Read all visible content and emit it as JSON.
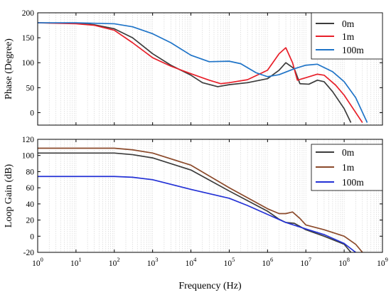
{
  "chart_data": [
    {
      "type": "line",
      "panel": "top",
      "title": "",
      "xlabel": "",
      "ylabel": "Phase (Degree)",
      "xscale": "log",
      "xlim": [
        1,
        1000000000
      ],
      "ylim": [
        -25,
        200
      ],
      "yticks": [
        0,
        50,
        100,
        150,
        200
      ],
      "ytick_labels": [
        "0",
        "50",
        "100",
        "150",
        "200"
      ],
      "legend_position": "top-right",
      "grid": "vertical minor gridlines",
      "series": [
        {
          "name": "0m",
          "color": "#3c3c3c",
          "points": [
            [
              1,
              180
            ],
            [
              10,
              179
            ],
            [
              30,
              176
            ],
            [
              100,
              168
            ],
            [
              300,
              150
            ],
            [
              1000,
              118
            ],
            [
              3000,
              95
            ],
            [
              10000,
              75
            ],
            [
              20000,
              60
            ],
            [
              50000,
              52
            ],
            [
              100000,
              56
            ],
            [
              300000,
              60
            ],
            [
              1000000,
              68
            ],
            [
              2000000,
              85
            ],
            [
              3000000,
              100
            ],
            [
              5000000,
              88
            ],
            [
              7000000,
              58
            ],
            [
              12000000,
              57
            ],
            [
              20000000,
              65
            ],
            [
              30000000,
              62
            ],
            [
              50000000,
              42
            ],
            [
              100000000,
              8
            ],
            [
              150000000,
              -20
            ]
          ]
        },
        {
          "name": "1m",
          "color": "#e8202a",
          "points": [
            [
              1,
              180
            ],
            [
              10,
              178
            ],
            [
              30,
              175
            ],
            [
              100,
              165
            ],
            [
              300,
              140
            ],
            [
              1000,
              110
            ],
            [
              3000,
              93
            ],
            [
              10000,
              78
            ],
            [
              30000,
              65
            ],
            [
              60000,
              58
            ],
            [
              100000,
              60
            ],
            [
              300000,
              66
            ],
            [
              1000000,
              85
            ],
            [
              2000000,
              118
            ],
            [
              3000000,
              130
            ],
            [
              4500000,
              100
            ],
            [
              6000000,
              65
            ],
            [
              10000000,
              70
            ],
            [
              20000000,
              77
            ],
            [
              30000000,
              75
            ],
            [
              60000000,
              55
            ],
            [
              100000000,
              35
            ],
            [
              300000000,
              -20
            ]
          ]
        },
        {
          "name": "100m",
          "color": "#1f74c8",
          "points": [
            [
              1,
              180
            ],
            [
              10,
              180
            ],
            [
              100,
              178
            ],
            [
              300,
              172
            ],
            [
              1000,
              158
            ],
            [
              3000,
              140
            ],
            [
              10000,
              115
            ],
            [
              30000,
              102
            ],
            [
              100000,
              103
            ],
            [
              200000,
              98
            ],
            [
              500000,
              80
            ],
            [
              1000000,
              72
            ],
            [
              2000000,
              76
            ],
            [
              5000000,
              88
            ],
            [
              10000000,
              95
            ],
            [
              20000000,
              97
            ],
            [
              50000000,
              82
            ],
            [
              100000000,
              62
            ],
            [
              200000000,
              30
            ],
            [
              400000000,
              -20
            ]
          ]
        }
      ]
    },
    {
      "type": "line",
      "panel": "bottom",
      "title": "",
      "xlabel": "Frequency (Hz)",
      "ylabel": "Loop Gain (dB)",
      "xscale": "log",
      "xlim": [
        1,
        1000000000
      ],
      "ylim": [
        -20,
        120
      ],
      "yticks": [
        -20,
        0,
        20,
        40,
        60,
        80,
        100,
        120
      ],
      "ytick_labels": [
        "-20",
        "0",
        "20",
        "40",
        "60",
        "80",
        "100",
        "120"
      ],
      "xticks": [
        1,
        10,
        100,
        1000,
        10000,
        100000,
        1000000,
        10000000,
        100000000,
        1000000000
      ],
      "xtick_exponents": [
        "0",
        "1",
        "2",
        "3",
        "4",
        "5",
        "6",
        "7",
        "8",
        "9"
      ],
      "xtick_base": "10",
      "legend_position": "top-right",
      "grid": "vertical minor gridlines",
      "series": [
        {
          "name": "0m",
          "color": "#3c3c3c",
          "points": [
            [
              1,
              103
            ],
            [
              100,
              103
            ],
            [
              300,
              101
            ],
            [
              1000,
              97
            ],
            [
              10000,
              82
            ],
            [
              100000,
              56
            ],
            [
              1000000,
              31
            ],
            [
              2000000,
              21
            ],
            [
              3000000,
              17
            ],
            [
              5000000,
              16
            ],
            [
              10000000,
              8
            ],
            [
              30000000,
              0
            ],
            [
              100000000,
              -10
            ],
            [
              150000000,
              -20
            ]
          ]
        },
        {
          "name": "1m",
          "color": "#8b4a2b",
          "points": [
            [
              1,
              109
            ],
            [
              100,
              109
            ],
            [
              300,
              107
            ],
            [
              1000,
              103
            ],
            [
              10000,
              88
            ],
            [
              100000,
              60
            ],
            [
              1000000,
              34
            ],
            [
              2000000,
              28
            ],
            [
              3000000,
              28
            ],
            [
              4500000,
              30
            ],
            [
              7000000,
              22
            ],
            [
              10000000,
              14
            ],
            [
              30000000,
              8
            ],
            [
              100000000,
              0
            ],
            [
              200000000,
              -10
            ],
            [
              300000000,
              -20
            ]
          ]
        },
        {
          "name": "100m",
          "color": "#2432d6",
          "points": [
            [
              1,
              74
            ],
            [
              100,
              74
            ],
            [
              300,
              73
            ],
            [
              1000,
              70
            ],
            [
              10000,
              58
            ],
            [
              100000,
              47
            ],
            [
              300000,
              38
            ],
            [
              1000000,
              27
            ],
            [
              3000000,
              17
            ],
            [
              10000000,
              9
            ],
            [
              30000000,
              2
            ],
            [
              100000000,
              -9
            ],
            [
              200000000,
              -20
            ]
          ]
        }
      ]
    }
  ]
}
